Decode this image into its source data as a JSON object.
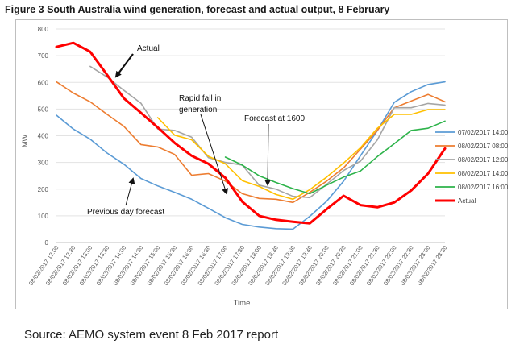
{
  "figure": {
    "title": "Figure 3   South Australia wind generation, forecast and actual output, 8 February",
    "source": "Source: AEMO system event 8 Feb 2017 report"
  },
  "chart_data": {
    "type": "line",
    "title": "Figure 3   South Australia wind generation, forecast and actual output, 8 February",
    "xlabel": "Time",
    "ylabel": "MW",
    "ylim": [
      0,
      800
    ],
    "yticks": [
      0,
      100,
      200,
      300,
      400,
      500,
      600,
      700,
      800
    ],
    "grid": "horizontal",
    "legend_position": "right",
    "categories": [
      "08/02/2017 12:00",
      "08/02/2017 12:30",
      "08/02/2017 13:00",
      "08/02/2017 13:30",
      "08/02/2017 14:00",
      "08/02/2017 14:30",
      "08/02/2017 15:00",
      "08/02/2017 15:30",
      "08/02/2017 16:00",
      "08/02/2017 16:30",
      "08/02/2017 17:00",
      "08/02/2017 17:30",
      "08/02/2017 18:00",
      "08/02/2017 18:30",
      "08/02/2017 19:00",
      "08/02/2017 19:30",
      "08/02/2017 20:00",
      "08/02/2017 20:30",
      "08/02/2017 21:00",
      "08/02/2017 21:30",
      "08/02/2017 22:00",
      "08/02/2017 22:30",
      "08/02/2017 23:00",
      "08/02/2017 23:30"
    ],
    "series": [
      {
        "name": "07/02/2017 14:00",
        "color": "#5b9bd5",
        "width": 1.6,
        "values": [
          477,
          425,
          387,
          335,
          293,
          240,
          212,
          188,
          162,
          128,
          93,
          68,
          58,
          52,
          50,
          98,
          155,
          230,
          325,
          420,
          525,
          565,
          592,
          602
        ]
      },
      {
        "name": "08/02/2017 08:00",
        "color": "#ed7d31",
        "width": 1.6,
        "values": [
          602,
          560,
          527,
          480,
          435,
          367,
          358,
          330,
          252,
          258,
          230,
          183,
          165,
          162,
          150,
          188,
          230,
          280,
          350,
          420,
          505,
          530,
          555,
          527
        ]
      },
      {
        "name": "08/02/2017 12:00",
        "color": "#a5a5a5",
        "width": 1.6,
        "values": [
          null,
          null,
          660,
          620,
          570,
          522,
          425,
          420,
          395,
          318,
          300,
          290,
          215,
          200,
          173,
          168,
          218,
          270,
          305,
          385,
          505,
          505,
          521,
          515
        ]
      },
      {
        "name": "08/02/2017 14:00",
        "color": "#ffc000",
        "width": 1.6,
        "values": [
          null,
          null,
          null,
          null,
          null,
          null,
          468,
          402,
          385,
          323,
          295,
          232,
          210,
          180,
          162,
          198,
          245,
          298,
          355,
          428,
          480,
          480,
          498,
          498
        ]
      },
      {
        "name": "08/02/2017 16:00",
        "color": "#2db34a",
        "width": 1.6,
        "values": [
          null,
          null,
          null,
          null,
          null,
          null,
          null,
          null,
          null,
          null,
          320,
          290,
          250,
          225,
          202,
          183,
          215,
          245,
          268,
          322,
          370,
          420,
          428,
          455
        ]
      },
      {
        "name": "Actual",
        "color": "#ff0000",
        "width": 3,
        "values": [
          733,
          748,
          715,
          628,
          540,
          486,
          431,
          373,
          325,
          295,
          242,
          153,
          100,
          85,
          78,
          72,
          125,
          175,
          140,
          132,
          150,
          195,
          258,
          352
        ]
      }
    ],
    "annotations": [
      {
        "text": "Actual"
      },
      {
        "text": "Rapid fall in generation"
      },
      {
        "text": "Forecast at 1600"
      },
      {
        "text": "Previous day forecast"
      }
    ]
  }
}
